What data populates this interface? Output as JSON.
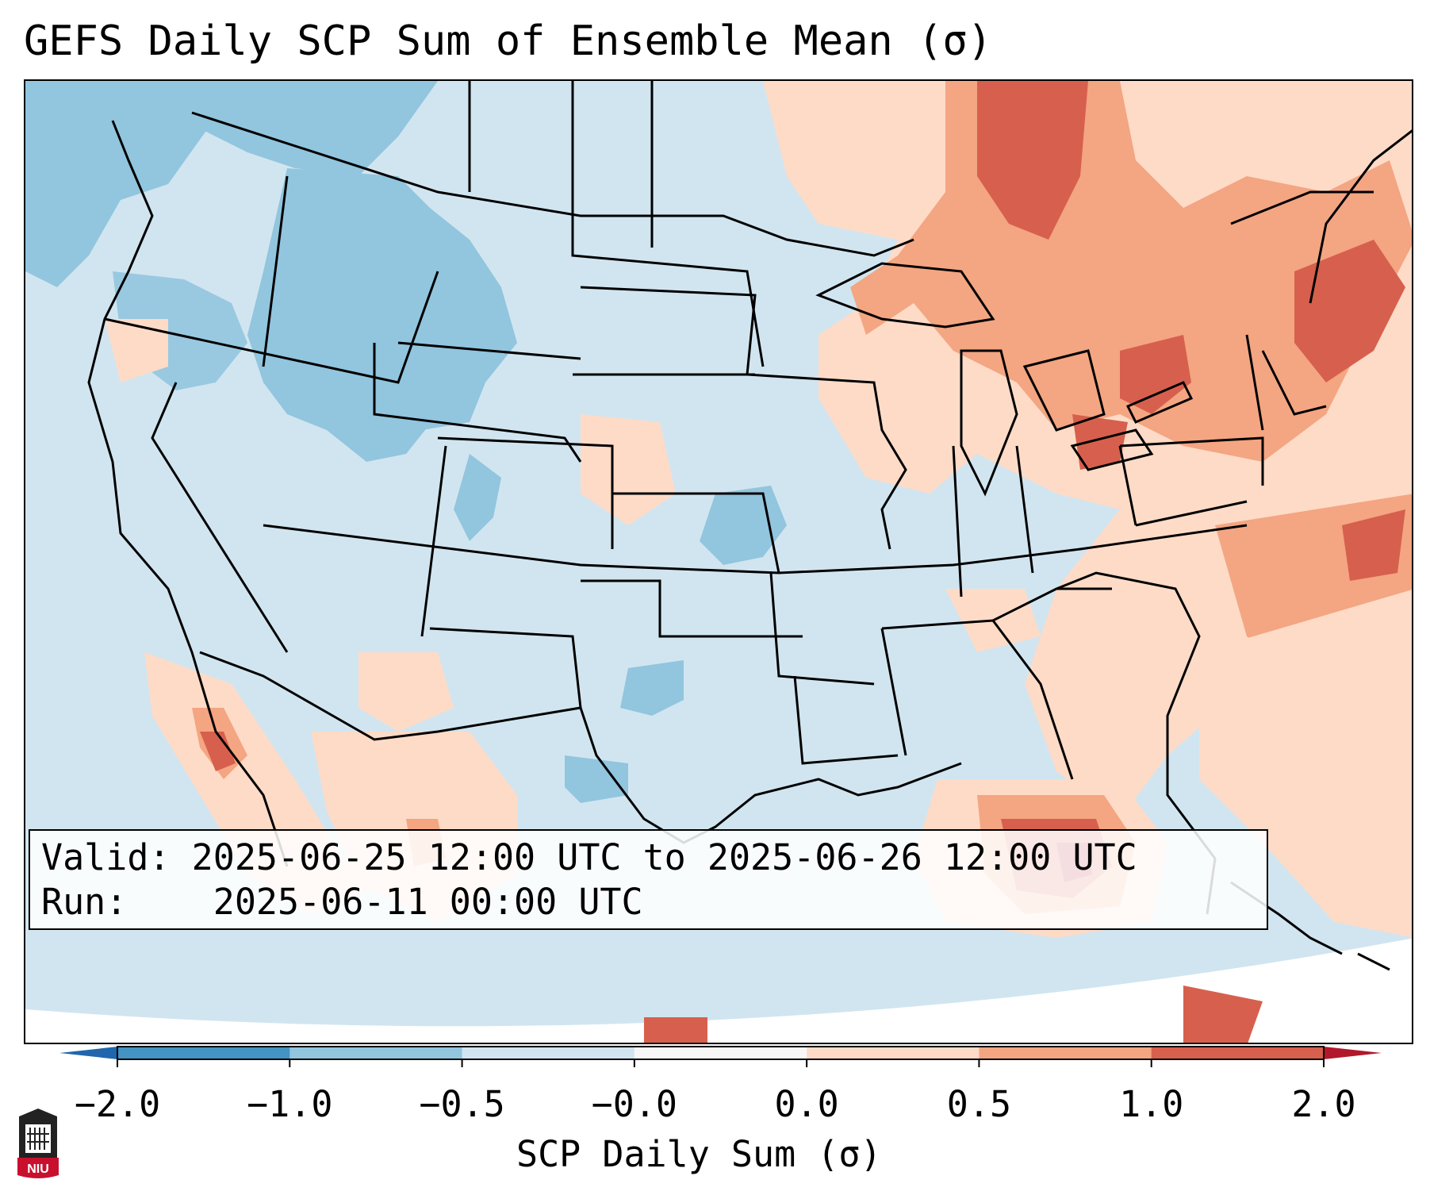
{
  "title": "GEFS Daily SCP Sum of Ensemble Mean (σ)",
  "info": {
    "valid_label": "Valid:",
    "valid_value": "2025-06-25 12:00 UTC to 2025-06-26 12:00 UTC",
    "run_label": "Run:",
    "run_value": "2025-06-11 00:00 UTC"
  },
  "colorbar": {
    "label": "SCP Daily Sum (σ)",
    "ticks": [
      "−2.0",
      "−1.0",
      "−0.5",
      "−0.0",
      "0.0",
      "0.5",
      "1.0",
      "2.0"
    ],
    "bins": [
      {
        "from": -2.0,
        "to": -1.0,
        "color": "#4393c3"
      },
      {
        "from": -1.0,
        "to": -0.5,
        "color": "#92c5de"
      },
      {
        "from": -0.5,
        "to": -0.0,
        "color": "#d1e5f0"
      },
      {
        "from": -0.0,
        "to": 0.0,
        "color": "#f7f7f7"
      },
      {
        "from": 0.0,
        "to": 0.5,
        "color": "#fddbc7"
      },
      {
        "from": 0.5,
        "to": 1.0,
        "color": "#f4a582"
      },
      {
        "from": 1.0,
        "to": 2.0,
        "color": "#d6604d"
      }
    ],
    "under_color": "#2166ac",
    "over_color": "#b2182b"
  },
  "logo": {
    "text": "NIU"
  },
  "colors": {
    "background_field": "#d1e5f0",
    "weak_negative": "#92c5de",
    "positive_light": "#fddbc7",
    "positive_mid": "#f4a582",
    "positive_strong": "#d6604d",
    "positive_max": "#b2182b"
  }
}
